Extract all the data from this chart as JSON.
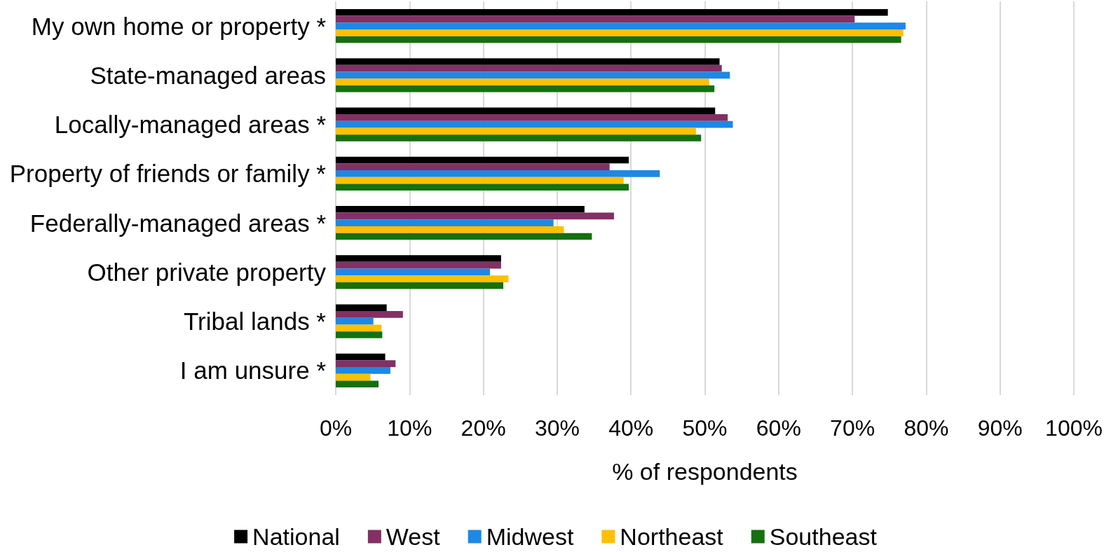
{
  "chart_data": {
    "type": "bar",
    "orientation": "horizontal",
    "categories": [
      "My own home or property *",
      "State-managed areas",
      "Locally-managed areas *",
      "Property of friends or family *",
      "Federally-managed areas *",
      "Other private property",
      "Tribal lands *",
      "I am unsure *"
    ],
    "series": [
      {
        "name": "National",
        "color": "#000000",
        "values": [
          74.8,
          52.0,
          51.4,
          39.7,
          33.7,
          22.4,
          6.9,
          6.7
        ]
      },
      {
        "name": "West",
        "color": "#833064",
        "values": [
          70.3,
          52.3,
          53.1,
          37.1,
          37.7,
          22.4,
          9.1,
          8.1
        ]
      },
      {
        "name": "Midwest",
        "color": "#1e88e5",
        "values": [
          77.2,
          53.4,
          53.8,
          43.9,
          29.5,
          20.9,
          5.1,
          7.4
        ]
      },
      {
        "name": "Northeast",
        "color": "#ffc000",
        "values": [
          76.9,
          50.6,
          48.8,
          39.0,
          30.9,
          23.4,
          6.2,
          4.7
        ]
      },
      {
        "name": "Southeast",
        "color": "#15700f",
        "values": [
          76.6,
          51.3,
          49.5,
          39.7,
          34.7,
          22.7,
          6.3,
          5.8
        ]
      }
    ],
    "xlabel": "% of respondents",
    "xlim": [
      0,
      100
    ],
    "xticks": [
      {
        "value": 0,
        "label": "0%"
      },
      {
        "value": 10,
        "label": "10%"
      },
      {
        "value": 20,
        "label": "20%"
      },
      {
        "value": 30,
        "label": "30%"
      },
      {
        "value": 40,
        "label": "40%"
      },
      {
        "value": 50,
        "label": "50%"
      },
      {
        "value": 60,
        "label": "60%"
      },
      {
        "value": 70,
        "label": "70%"
      },
      {
        "value": 80,
        "label": "80%"
      },
      {
        "value": 90,
        "label": "90%"
      },
      {
        "value": 100,
        "label": "100%"
      }
    ],
    "grid": "x",
    "legend": "bottom"
  }
}
